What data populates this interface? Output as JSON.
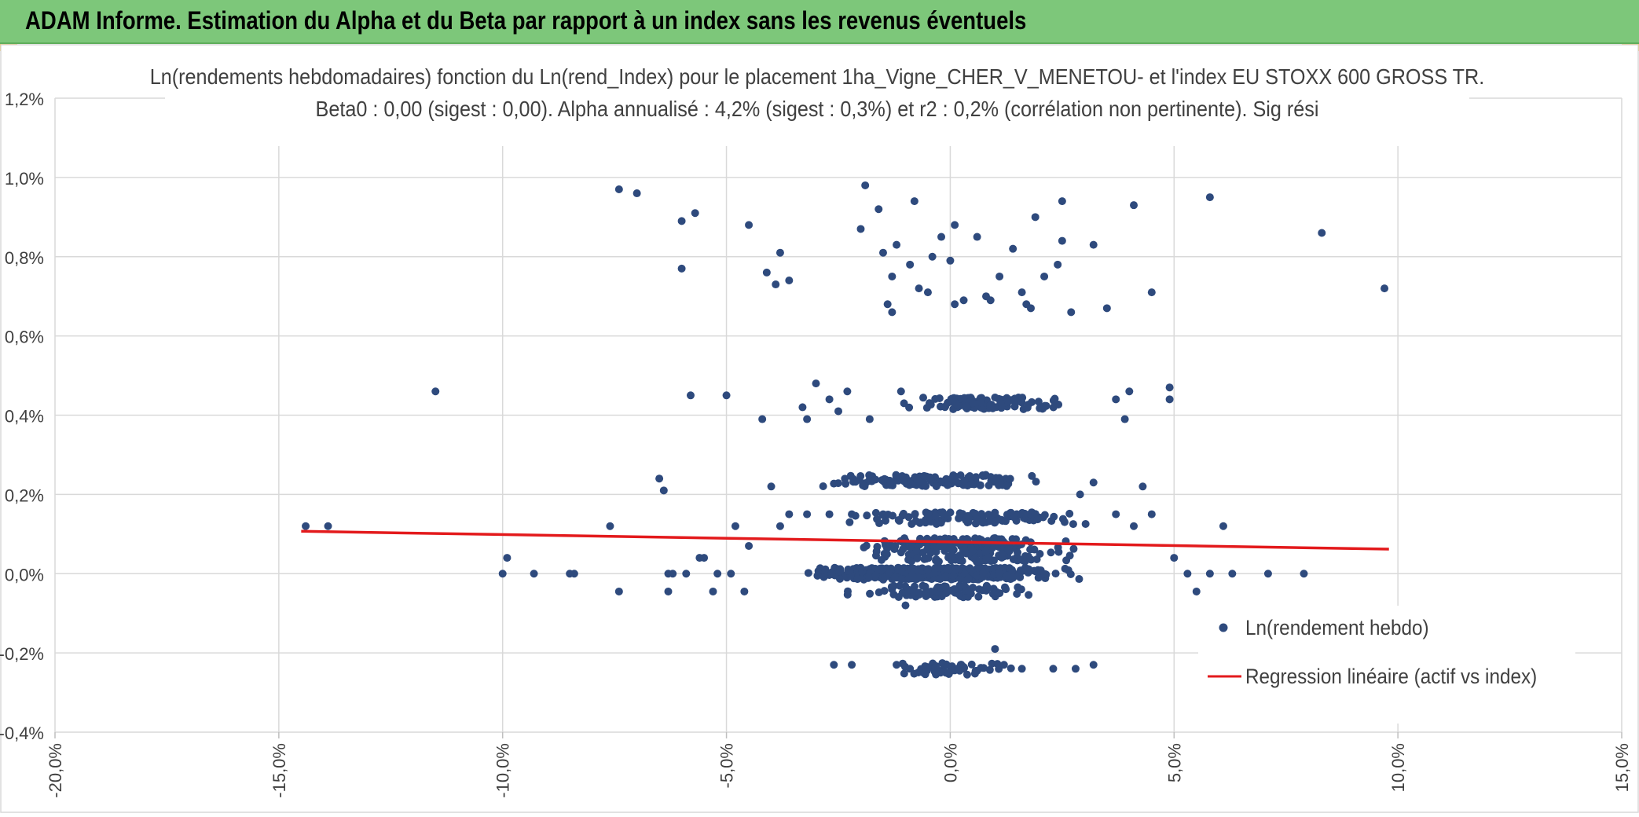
{
  "header": {
    "title": "ADAM Informe. Estimation du Alpha et du Beta par rapport à un index sans les revenus éventuels"
  },
  "colors": {
    "banner": "#7dc77a",
    "accent": "#f2b21b",
    "points": "#2e4a7d",
    "regression": "#e31a1c",
    "grid": "#d9d9d9"
  },
  "chart_data": {
    "type": "scatter",
    "title": "Ln(rendements hebdomadaires) fonction du Ln(rend_Index) pour le placement 1ha_Vigne_CHER_V_MENETOU- et l'index EU STOXX 600 GROSS TR.",
    "subtitle": "Beta0 : 0,00 (sigest : 0,00). Alpha annualisé : 4,2% (sigest : 0,3%) et r2 : 0,2% (corrélation non pertinente). Sig rési",
    "xlim": [
      -20,
      15
    ],
    "ylim": [
      -0.4,
      1.2
    ],
    "grid": true,
    "legend_position": "bottom-right",
    "x_ticks": [
      {
        "value": -20,
        "label": "-20,0%"
      },
      {
        "value": -15,
        "label": "-15,0%"
      },
      {
        "value": -10,
        "label": "-10,0%"
      },
      {
        "value": -5,
        "label": "-5,0%"
      },
      {
        "value": 0,
        "label": "0,0%"
      },
      {
        "value": 5,
        "label": "5,0%"
      },
      {
        "value": 10,
        "label": "10,0%"
      },
      {
        "value": 15,
        "label": "15,0%"
      }
    ],
    "y_ticks": [
      {
        "value": 1.2,
        "label": "1,2%"
      },
      {
        "value": 1.0,
        "label": "1,0%"
      },
      {
        "value": 0.8,
        "label": "0,8%"
      },
      {
        "value": 0.6,
        "label": "0,6%"
      },
      {
        "value": 0.4,
        "label": "0,4%"
      },
      {
        "value": 0.2,
        "label": "0,2%"
      },
      {
        "value": 0.0,
        "label": "0,0%"
      },
      {
        "value": -0.2,
        "label": "-0,2%"
      },
      {
        "value": -0.4,
        "label": "-0,4%"
      }
    ],
    "series": [
      {
        "name": "Ln(rendement hebdo)",
        "kind": "scatter",
        "color": "#2e4a7d",
        "points": [
          [
            -14.4,
            0.12
          ],
          [
            -13.9,
            0.12
          ],
          [
            -11.5,
            0.46
          ],
          [
            -10.0,
            0.0
          ],
          [
            -9.9,
            0.04
          ],
          [
            -9.3,
            0.0
          ],
          [
            -8.5,
            0.0
          ],
          [
            -8.4,
            0.0
          ],
          [
            -7.6,
            0.12
          ],
          [
            -7.4,
            -0.045
          ],
          [
            -7.4,
            0.97
          ],
          [
            -7.0,
            0.96
          ],
          [
            -6.5,
            0.24
          ],
          [
            -6.4,
            0.21
          ],
          [
            -6.3,
            0.0
          ],
          [
            -6.3,
            -0.045
          ],
          [
            -6.0,
            0.89
          ],
          [
            -6.0,
            0.77
          ],
          [
            -5.8,
            0.45
          ],
          [
            -5.7,
            0.91
          ],
          [
            -5.6,
            0.04
          ],
          [
            -5.5,
            0.04
          ],
          [
            -5.3,
            -0.045
          ],
          [
            -5.0,
            0.45
          ],
          [
            -4.8,
            0.12
          ],
          [
            -4.5,
            0.07
          ],
          [
            -4.5,
            0.88
          ],
          [
            -4.2,
            0.39
          ],
          [
            -4.1,
            0.76
          ],
          [
            -3.9,
            0.73
          ],
          [
            -3.8,
            0.81
          ],
          [
            -3.6,
            0.74
          ],
          [
            -3.3,
            0.42
          ],
          [
            -3.2,
            0.39
          ],
          [
            -3.0,
            0.48
          ],
          [
            -2.7,
            0.44
          ],
          [
            -2.5,
            0.41
          ],
          [
            -2.3,
            0.46
          ],
          [
            -2.2,
            0.0
          ],
          [
            -2.0,
            0.87
          ],
          [
            -1.9,
            0.98
          ],
          [
            -1.8,
            0.39
          ],
          [
            -1.6,
            0.92
          ],
          [
            -1.5,
            0.81
          ],
          [
            -1.4,
            0.68
          ],
          [
            -1.3,
            0.66
          ],
          [
            -1.3,
            0.75
          ],
          [
            -1.2,
            0.83
          ],
          [
            -1.1,
            0.46
          ],
          [
            -0.9,
            0.78
          ],
          [
            -0.8,
            0.94
          ],
          [
            -0.7,
            0.72
          ],
          [
            -0.5,
            0.71
          ],
          [
            -0.4,
            0.8
          ],
          [
            -0.2,
            0.85
          ],
          [
            0.0,
            0.79
          ],
          [
            0.1,
            0.68
          ],
          [
            0.1,
            0.88
          ],
          [
            0.3,
            0.69
          ],
          [
            0.6,
            0.85
          ],
          [
            0.8,
            0.7
          ],
          [
            0.9,
            0.69
          ],
          [
            1.1,
            0.75
          ],
          [
            1.4,
            0.82
          ],
          [
            1.6,
            0.71
          ],
          [
            1.7,
            0.68
          ],
          [
            1.8,
            0.67
          ],
          [
            1.9,
            0.9
          ],
          [
            2.1,
            0.75
          ],
          [
            2.4,
            0.78
          ],
          [
            2.5,
            0.84
          ],
          [
            2.5,
            0.94
          ],
          [
            2.7,
            0.66
          ],
          [
            3.2,
            0.83
          ],
          [
            3.5,
            0.67
          ],
          [
            4.1,
            0.93
          ],
          [
            4.5,
            0.71
          ],
          [
            5.8,
            0.95
          ],
          [
            8.3,
            0.86
          ],
          [
            9.7,
            0.72
          ],
          [
            -2.6,
            -0.23
          ],
          [
            -2.2,
            -0.23
          ],
          [
            -1.2,
            -0.23
          ],
          [
            1.0,
            -0.19
          ],
          [
            2.3,
            -0.24
          ],
          [
            3.2,
            -0.23
          ],
          [
            2.8,
            -0.24
          ],
          [
            -0.9,
            -0.24
          ],
          [
            -0.6,
            -0.25
          ],
          [
            -0.3,
            -0.24
          ],
          [
            0.0,
            -0.235
          ],
          [
            0.3,
            -0.24
          ],
          [
            0.6,
            -0.245
          ],
          [
            1.2,
            -0.23
          ],
          [
            1.6,
            -0.24
          ],
          [
            -0.1,
            -0.25
          ],
          [
            4.9,
            0.44
          ],
          [
            4.9,
            0.47
          ],
          [
            4.3,
            0.22
          ],
          [
            3.7,
            0.44
          ],
          [
            3.9,
            0.39
          ],
          [
            4.0,
            0.46
          ],
          [
            -1.0,
            -0.08
          ],
          [
            4.5,
            0.15
          ],
          [
            5.0,
            0.04
          ],
          [
            5.3,
            0.0
          ],
          [
            5.5,
            -0.045
          ],
          [
            5.8,
            0.0
          ],
          [
            6.1,
            0.12
          ],
          [
            6.3,
            0.0
          ],
          [
            7.1,
            0.0
          ],
          [
            7.9,
            0.0
          ],
          [
            -4.0,
            0.22
          ],
          [
            -3.6,
            0.15
          ],
          [
            -3.2,
            0.15
          ],
          [
            -2.7,
            0.15
          ],
          [
            -2.2,
            0.15
          ],
          [
            -1.5,
            0.15
          ],
          [
            -3.8,
            0.12
          ],
          [
            3.7,
            0.15
          ],
          [
            4.1,
            0.12
          ],
          [
            3.2,
            0.23
          ],
          [
            2.9,
            0.2
          ],
          [
            -6.2,
            0.0
          ],
          [
            -5.9,
            0.0
          ],
          [
            -5.2,
            0.0
          ],
          [
            -4.9,
            0.0
          ],
          [
            -4.6,
            -0.045
          ]
        ],
        "dense_clusters": [
          {
            "x_min": -3.8,
            "x_max": 3.2,
            "y": 0.0,
            "count": 460
          },
          {
            "x_min": -3.0,
            "x_max": 2.9,
            "y": -0.045,
            "count": 90
          },
          {
            "x_min": -3.5,
            "x_max": 2.6,
            "y": 0.235,
            "count": 130
          },
          {
            "x_min": -3.0,
            "x_max": 3.7,
            "y": 0.14,
            "count": 120
          },
          {
            "x_min": -2.8,
            "x_max": 3.0,
            "y": 0.075,
            "count": 130
          },
          {
            "x_min": -2.4,
            "x_max": 3.4,
            "y": 0.045,
            "count": 100
          },
          {
            "x_min": -1.5,
            "x_max": 3.0,
            "y": 0.43,
            "count": 110
          },
          {
            "x_min": -1.6,
            "x_max": 1.6,
            "y": -0.24,
            "count": 45
          }
        ]
      },
      {
        "name": "Regression linéaire (actif vs index)",
        "kind": "line",
        "color": "#e31a1c",
        "x": [
          -14.5,
          9.8
        ],
        "y": [
          0.107,
          0.062
        ]
      }
    ]
  }
}
